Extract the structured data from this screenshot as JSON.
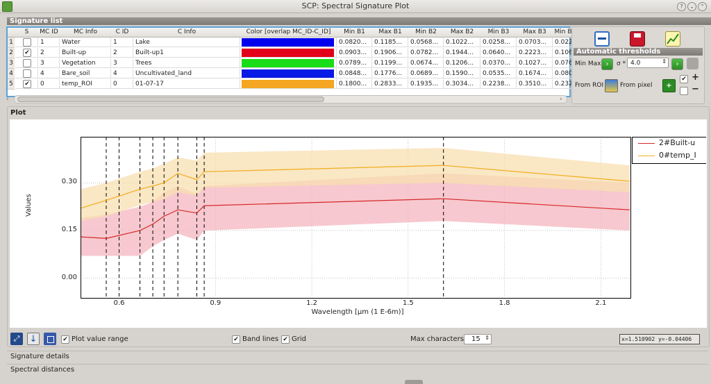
{
  "window": {
    "title": "SCP: Spectral Signature Plot"
  },
  "signature_list": {
    "header": "Signature list",
    "columns": [
      "S",
      "MC ID",
      "MC Info",
      "C ID",
      "C Info",
      "Color [overlap MC_ID-C_ID]",
      "Min B1",
      "Max B1",
      "Min B2",
      "Max B2",
      "Min B3",
      "Max B3",
      "Min B"
    ],
    "rows": [
      {
        "num": "1",
        "checked": "",
        "mc_id": "1",
        "mc_info": "Water",
        "c_id": "1",
        "c_info": "Lake",
        "color": "#0000ee",
        "min_b1": "0.0820...",
        "max_b1": "0.1185...",
        "min_b2": "0.0568...",
        "max_b2": "0.1022...",
        "min_b3": "0.0258...",
        "max_b3": "0.0703...",
        "min_b4": "0.022"
      },
      {
        "num": "2",
        "checked": "✔",
        "mc_id": "2",
        "mc_info": "Built-up",
        "c_id": "2",
        "c_info": "Built-up1",
        "color": "#e3001a",
        "min_b1": "0.0903...",
        "max_b1": "0.1906...",
        "min_b2": "0.0782...",
        "max_b2": "0.1944...",
        "min_b3": "0.0640...",
        "max_b3": "0.2223...",
        "min_b4": "0.106"
      },
      {
        "num": "3",
        "checked": "",
        "mc_id": "3",
        "mc_info": "Vegetation",
        "c_id": "3",
        "c_info": "Trees",
        "color": "#19dd18",
        "min_b1": "0.0789...",
        "max_b1": "0.1199...",
        "min_b2": "0.0674...",
        "max_b2": "0.1206...",
        "min_b3": "0.0370...",
        "max_b3": "0.1027...",
        "min_b4": "0.076"
      },
      {
        "num": "4",
        "checked": "",
        "mc_id": "4",
        "mc_info": "Bare_soil",
        "c_id": "4",
        "c_info": "Uncultivated_land",
        "color": "#0a1ae6",
        "min_b1": "0.0848...",
        "max_b1": "0.1776...",
        "min_b2": "0.0689...",
        "max_b2": "0.1590...",
        "min_b3": "0.0535...",
        "max_b3": "0.1674...",
        "min_b4": "0.080"
      },
      {
        "num": "5",
        "checked": "✔",
        "mc_id": "0",
        "mc_info": "temp_ROI",
        "c_id": "0",
        "c_info": "01-07-17",
        "color": "#f5a623",
        "min_b1": "0.1800...",
        "max_b1": "0.2833...",
        "min_b2": "0.1935...",
        "max_b2": "0.3034...",
        "min_b3": "0.2238...",
        "max_b3": "0.3510...",
        "min_b4": "0.232"
      }
    ]
  },
  "right_panel": {
    "auto_thresholds_label": "Automatic  thresholds",
    "minmax_label": "Min Max",
    "sigma_label": "σ *",
    "sigma_value": "4.0",
    "from_roi_label": "From ROI",
    "from_pixel_label": "From pixel",
    "plus": "+",
    "minus": "−"
  },
  "plot": {
    "header": "Plot",
    "chart_data": {
      "type": "line",
      "xlabel": "Wavelength [µm (1 E-6m)]",
      "ylabel": "Values",
      "xlim": [
        0.48,
        2.19
      ],
      "ylim": [
        -0.06,
        0.445
      ],
      "xticks": [
        "0.6",
        "0.9",
        "1.2",
        "1.5",
        "1.8",
        "2.1"
      ],
      "xtick_values": [
        0.6,
        0.9,
        1.2,
        1.5,
        1.8,
        2.1
      ],
      "yticks": [
        "0.00",
        "0.15",
        "0.30"
      ],
      "ytick_values": [
        0.0,
        0.15,
        0.3
      ],
      "grid": true,
      "legend_position": "outside-right",
      "band_lines": [
        0.56,
        0.6,
        0.665,
        0.705,
        0.74,
        0.783,
        0.842,
        0.865,
        1.61
      ],
      "series": [
        {
          "name": "2#Built-u",
          "color": "#d62728",
          "fill": "#f4b6bf",
          "x": [
            0.48,
            0.56,
            0.665,
            0.705,
            0.74,
            0.783,
            0.842,
            0.865,
            1.61,
            2.19
          ],
          "y": [
            0.13,
            0.125,
            0.15,
            0.17,
            0.195,
            0.215,
            0.205,
            0.228,
            0.25,
            0.215
          ],
          "upper": [
            0.19,
            0.2,
            0.225,
            0.24,
            0.27,
            0.29,
            0.265,
            0.29,
            0.33,
            0.3
          ],
          "lower": [
            0.07,
            0.07,
            0.07,
            0.1,
            0.12,
            0.14,
            0.12,
            0.15,
            0.18,
            0.15
          ]
        },
        {
          "name": "0#temp_I",
          "color": "#f0ad1c",
          "fill": "#f8dfb0",
          "x": [
            0.48,
            0.56,
            0.665,
            0.705,
            0.74,
            0.783,
            0.842,
            0.865,
            1.61,
            2.19
          ],
          "y": [
            0.22,
            0.245,
            0.28,
            0.29,
            0.3,
            0.33,
            0.31,
            0.335,
            0.355,
            0.305
          ],
          "upper": [
            0.28,
            0.3,
            0.335,
            0.345,
            0.36,
            0.38,
            0.37,
            0.395,
            0.41,
            0.355
          ],
          "lower": [
            0.18,
            0.195,
            0.23,
            0.24,
            0.25,
            0.27,
            0.26,
            0.285,
            0.3,
            0.27
          ]
        }
      ]
    },
    "controls": {
      "plot_value_range_label": "Plot value range",
      "band_lines_label": "Band lines",
      "grid_label": "Grid",
      "max_characters_label": "Max characters",
      "max_characters_value": "15",
      "coord_readout": "x=1.510902 y=-0.04406"
    }
  },
  "bottom_sections": {
    "signature_details": "Signature details",
    "spectral_distances": "Spectral distances"
  },
  "icons": {
    "fit": "expand-arrows-icon",
    "save": "download-arrow-icon",
    "zoom": "zoom-rect-icon"
  }
}
